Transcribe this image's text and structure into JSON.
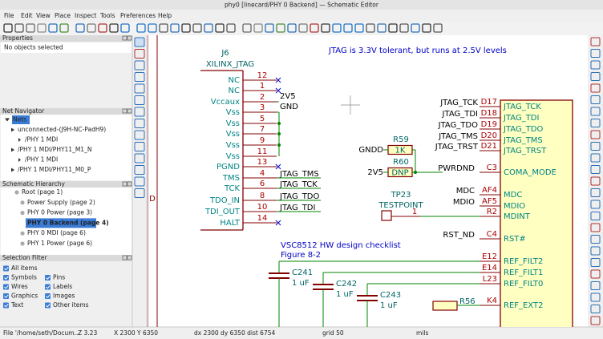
{
  "window": {
    "title": "phy0 [linecard/PHY 0 Backend] — Schematic Editor"
  },
  "menu": [
    "File",
    "Edit",
    "View",
    "Place",
    "Inspect",
    "Tools",
    "Preferences",
    "Help"
  ],
  "panels": {
    "properties": {
      "title": "Properties",
      "content": "No objects selected"
    },
    "net_navigator": {
      "title": "Net Navigator",
      "items": [
        "Nets",
        "unconnected-(J9H-NC-PadH9)",
        "/PHY 1 MDI",
        "/PHY 1 MDI/PHY11_M1_N",
        "/PHY 1 MDI",
        "/PHY 1 MDI/PHY11_M0_P"
      ]
    },
    "hierarchy": {
      "title": "Schematic Hierarchy",
      "items": [
        "Root (page 1)",
        "Power Supply (page 2)",
        "PHY 0 Power (page 3)",
        "PHY 0 Backend (page 4)",
        "PHY 0 MDI (page 6)",
        "PHY 1 Power (page 6)"
      ]
    },
    "selection_filter": {
      "title": "Selection Filter",
      "items": [
        "All items",
        "Symbols",
        "Pins",
        "Wires",
        "Labels",
        "Graphics",
        "Images",
        "Text",
        "Other items"
      ]
    }
  },
  "schematic": {
    "border_letter": "D",
    "notes": [
      "JTAG is 3.3V tolerant, but runs at 2.5V levels",
      "VSC8512 HW design checklist",
      "Figure 8-2"
    ],
    "j6": {
      "reference": "J6",
      "value": "XILINX_JTAG",
      "pins": [
        [
          "NC",
          "12"
        ],
        [
          "NC",
          "1"
        ],
        [
          "Vccaux",
          "2"
        ],
        [
          "Vss",
          "3"
        ],
        [
          "Vss",
          "5"
        ],
        [
          "Vss",
          "7"
        ],
        [
          "Vss",
          "9"
        ],
        [
          "Vss",
          "11"
        ],
        [
          "PGND",
          "13"
        ],
        [
          "TMS",
          "4"
        ],
        [
          "TCK",
          "6"
        ],
        [
          "TDO_IN",
          "8"
        ],
        [
          "TDI_OUT",
          "10"
        ],
        [
          "HALT",
          "14"
        ]
      ],
      "net_labels": [
        "2V5",
        "GND",
        "JTAG_TMS",
        "JTAG_TCK",
        "JTAG_TDO",
        "JTAG_TDI"
      ]
    },
    "r59": {
      "reference": "R59",
      "value": "1K",
      "net": "GNDD"
    },
    "r60": {
      "reference": "R60",
      "value": "DNP",
      "net": "2V5"
    },
    "tp23": {
      "reference": "TP23",
      "value": "TESTPOINT",
      "pin": "1"
    },
    "ic_pins": [
      {
        "label": "JTAG_TCK",
        "number": "D17",
        "name": "JTAG_TCK"
      },
      {
        "label": "JTAG_TDI",
        "number": "D18",
        "name": "JTAG_TDI"
      },
      {
        "label": "JTAG_TDO",
        "number": "D19",
        "name": "JTAG_TDO"
      },
      {
        "label": "JTAG_TMS",
        "number": "D20",
        "name": "JTAG_TMS"
      },
      {
        "label": "JTAG_TRST",
        "number": "D21",
        "name": "JTAG_TRST"
      },
      {
        "label": "PWRDND",
        "number": "C3",
        "name": "COMA_MODE"
      },
      {
        "label": "MDC",
        "number": "AF4",
        "name": "MDC"
      },
      {
        "label": "MDIO",
        "number": "AF5",
        "name": "MDIO"
      },
      {
        "number": "R2",
        "name": "MDINT"
      },
      {
        "label": "RST_ND",
        "number": "C4",
        "name": "RST#"
      },
      {
        "number": "E12",
        "name": "REF_FILT2"
      },
      {
        "number": "E14",
        "name": "REF_FILT1"
      },
      {
        "number": "L23",
        "name": "REF_FILT0"
      },
      {
        "number": "K4",
        "name": "REF_EXT2"
      }
    ],
    "capacitors": [
      {
        "reference": "C241",
        "value": "1 uF"
      },
      {
        "reference": "C242",
        "value": "1 uF"
      },
      {
        "reference": "C243",
        "value": "1 uF"
      }
    ],
    "r56": {
      "reference": "R56"
    }
  },
  "status_bar": [
    "File '/home/seth/Docum...",
    "Z 3.23",
    "X 2300 Y 6350",
    "dx 2300 dy 6350 dist 6754",
    "grid 50",
    "mils"
  ]
}
